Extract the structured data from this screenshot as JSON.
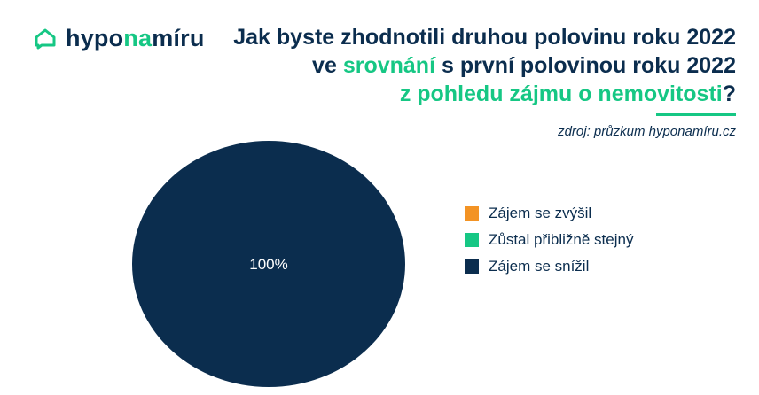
{
  "logo": {
    "part1": "hypo",
    "part2": "na",
    "part3": "míru",
    "icon": "house-chat-icon"
  },
  "title": {
    "line1": "Jak byste zhodnotili druhou polovinu roku 2022",
    "line2_prefix": "ve",
    "line2_highlight": "srovnání",
    "line2_suffix": "s první polovinou roku 2022",
    "line3_highlight": "z pohledu zájmu o nemovitosti",
    "line3_suffix": "?"
  },
  "source": "zdroj: průzkum hyponamíru.cz",
  "colors": {
    "navy": "#0b2d4e",
    "green": "#16c784",
    "orange": "#f39324"
  },
  "chart_data": {
    "type": "pie",
    "series": [
      {
        "name": "Zájem se zvýšil",
        "value": 0,
        "color": "#f39324"
      },
      {
        "name": "Zůstal přibližně stejný",
        "value": 0,
        "color": "#16c784"
      },
      {
        "name": "Zájem se snížil",
        "value": 100,
        "color": "#0b2d4e"
      }
    ],
    "data_labels": [
      "100%"
    ],
    "legend_position": "right"
  }
}
